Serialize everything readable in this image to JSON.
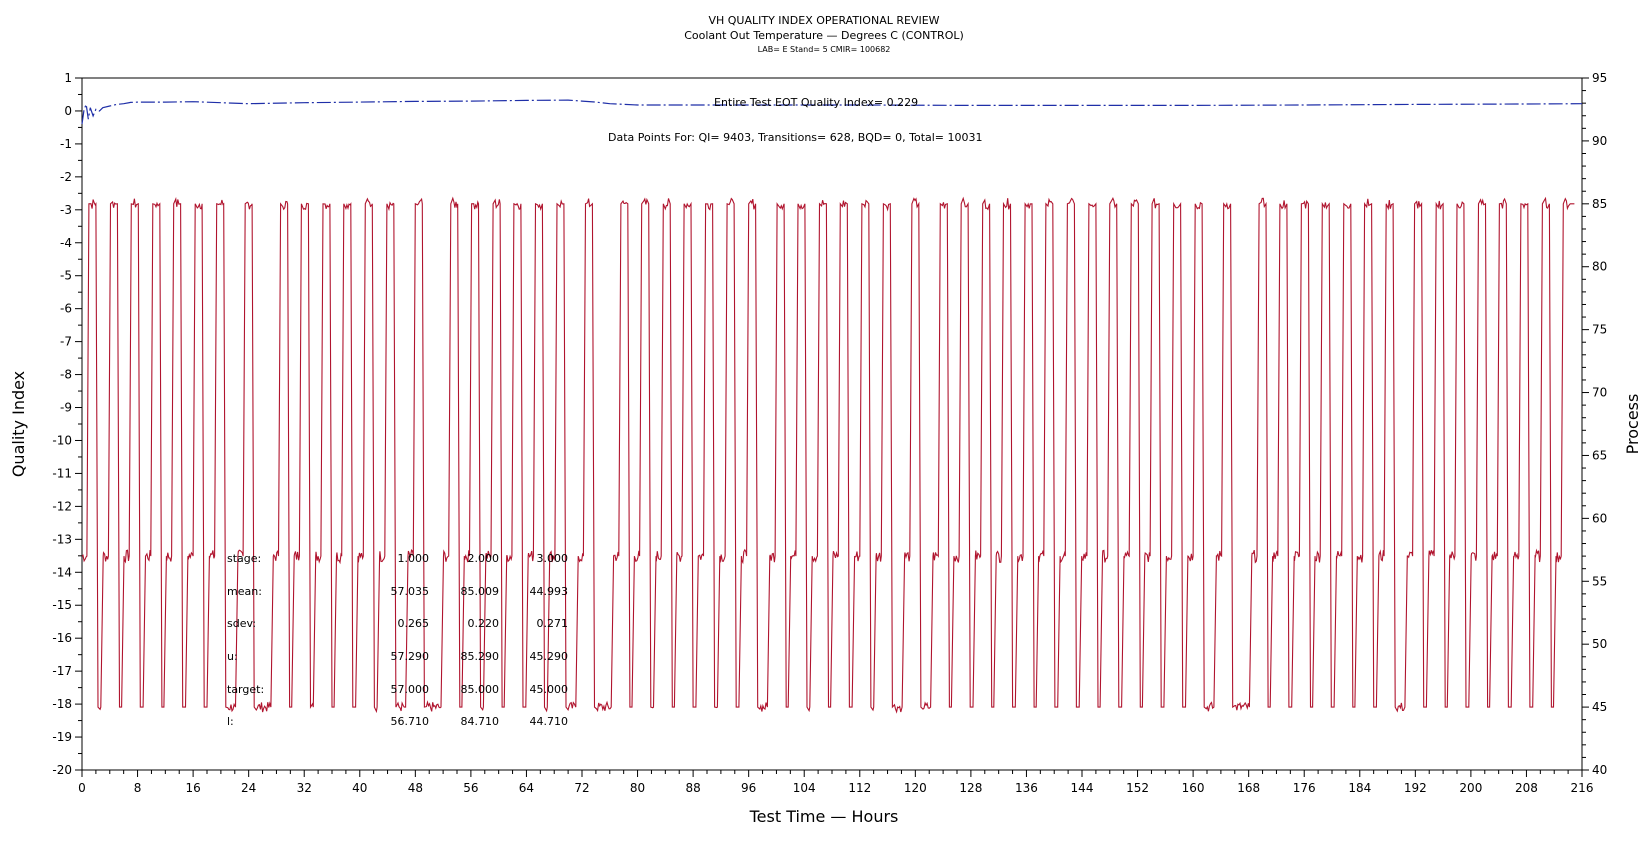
{
  "chart_data": {
    "type": "line",
    "title": "VH QUALITY INDEX OPERATIONAL REVIEW",
    "subtitle": "Coolant Out Temperature — Degrees C (CONTROL)",
    "subtitle2": "LAB= E Stand= 5 CMIR= 100682",
    "xlabel": "Test Time — Hours",
    "ylabel_left": "Quality Index",
    "ylabel_right": "Process",
    "xlim": [
      0,
      216
    ],
    "ylim_left": [
      -20,
      1
    ],
    "ylim_right": [
      40,
      95
    ],
    "x_ticks": [
      "0",
      "8",
      "16",
      "24",
      "32",
      "40",
      "48",
      "56",
      "64",
      "72",
      "80",
      "88",
      "96",
      "104",
      "112",
      "120",
      "128",
      "136",
      "144",
      "152",
      "160",
      "168",
      "176",
      "184",
      "192",
      "200",
      "208",
      "216"
    ],
    "y_left_ticks": [
      "1",
      "0",
      "-1",
      "-2",
      "-3",
      "-4",
      "-5",
      "-6",
      "-7",
      "-8",
      "-9",
      "-10",
      "-11",
      "-12",
      "-13",
      "-14",
      "-15",
      "-16",
      "-17",
      "-18",
      "-19",
      "-20"
    ],
    "y_right_ticks": [
      "95",
      "90",
      "85",
      "80",
      "75",
      "70",
      "65",
      "60",
      "55",
      "50",
      "45",
      "40"
    ],
    "annotation_qi": "Entire Test EOT Quality Index=   0.229",
    "annotation_points": "Data Points For: QI=  9403, Transitions=   628, BQD=     0, Total=  10031",
    "series": [
      {
        "name": "Quality Index",
        "axis": "left",
        "color": "#1f2fa8",
        "points": [
          [
            0,
            -0.4
          ],
          [
            0.3,
            0.05
          ],
          [
            0.6,
            0.2
          ],
          [
            0.9,
            -0.25
          ],
          [
            1.2,
            0.1
          ],
          [
            1.6,
            -0.15
          ],
          [
            2,
            0.05
          ],
          [
            2.5,
            0.0
          ],
          [
            3,
            0.1
          ],
          [
            4,
            0.15
          ],
          [
            5,
            0.2
          ],
          [
            6,
            0.22
          ],
          [
            7,
            0.26
          ],
          [
            8,
            0.27
          ],
          [
            12,
            0.27
          ],
          [
            16,
            0.28
          ],
          [
            20,
            0.25
          ],
          [
            24,
            0.22
          ],
          [
            32,
            0.25
          ],
          [
            40,
            0.27
          ],
          [
            48,
            0.29
          ],
          [
            56,
            0.3
          ],
          [
            64,
            0.32
          ],
          [
            70,
            0.33
          ],
          [
            72,
            0.3
          ],
          [
            74,
            0.27
          ],
          [
            76,
            0.22
          ],
          [
            80,
            0.18
          ],
          [
            96,
            0.18
          ],
          [
            112,
            0.18
          ],
          [
            128,
            0.17
          ],
          [
            144,
            0.17
          ],
          [
            160,
            0.17
          ],
          [
            176,
            0.18
          ],
          [
            192,
            0.2
          ],
          [
            208,
            0.21
          ],
          [
            216,
            0.22
          ]
        ]
      },
      {
        "name": "Coolant Out Temperature",
        "axis": "right",
        "color": "#b0142e",
        "cycle_starts": [
          0,
          3.1,
          6.1,
          9.2,
          12.2,
          15.3,
          18.4,
          22.5,
          27.6,
          30.6,
          33.7,
          36.7,
          39.8,
          42.9,
          47.0,
          52.1,
          55.1,
          58.2,
          61.2,
          64.3,
          67.4,
          71.5,
          76.6,
          79.6,
          82.7,
          85.7,
          88.8,
          91.9,
          95.0,
          99.1,
          102.1,
          105.2,
          108.2,
          111.3,
          114.4,
          118.5,
          122.6,
          125.6,
          128.7,
          131.7,
          134.8,
          137.8,
          140.9,
          144.0,
          147.0,
          150.1,
          153.1,
          156.2,
          159.3,
          163.4,
          168.5,
          171.5,
          174.6,
          177.6,
          180.7,
          183.7,
          186.8,
          190.9,
          194.0,
          197.0,
          200.1,
          203.1,
          206.2,
          209.3,
          212.3
        ],
        "levels": {
          "stage1": 57.0,
          "stage2": 85.0,
          "stage3": 45.0
        }
      }
    ],
    "stats_table": {
      "row_labels": [
        "stage:",
        "mean:",
        "sdev:",
        "u:",
        "target:",
        "l:"
      ],
      "col1": [
        "1.000",
        "57.035",
        "0.265",
        "57.290",
        "57.000",
        "56.710"
      ],
      "col2": [
        "2.000",
        "85.009",
        "0.220",
        "85.290",
        "85.000",
        "84.710"
      ],
      "col3": [
        "3.000",
        "44.993",
        "0.271",
        "45.290",
        "45.000",
        "44.710"
      ]
    }
  }
}
